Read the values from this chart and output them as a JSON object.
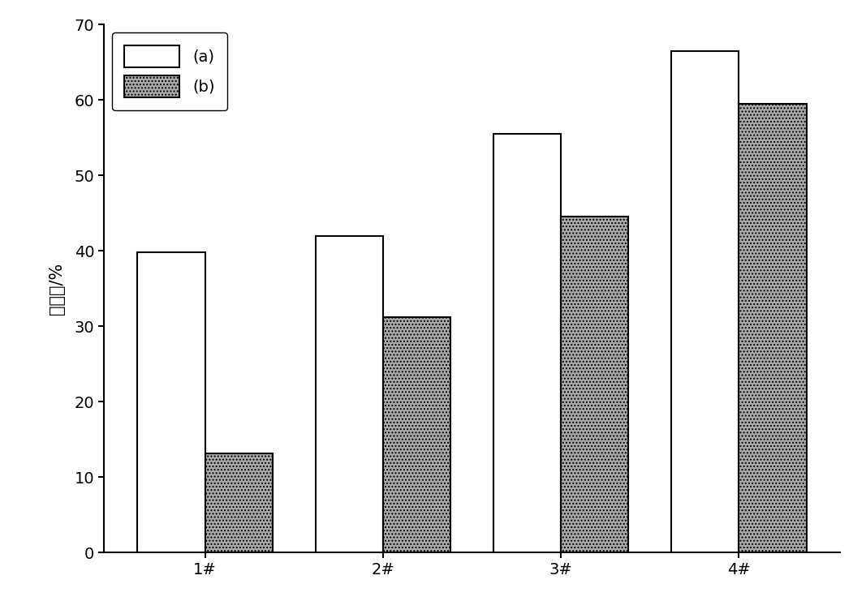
{
  "categories": [
    "1#",
    "2#",
    "3#",
    "4#"
  ],
  "series_a": [
    39.8,
    42.0,
    55.5,
    66.5
  ],
  "series_b": [
    13.2,
    31.2,
    44.5,
    59.5
  ],
  "series_a_color": "#ffffff",
  "series_a_edgecolor": "#000000",
  "series_b_color": "#aaaaaa",
  "series_b_edgecolor": "#000000",
  "series_b_hatch": "....",
  "ylabel": "降解率/%",
  "ylim": [
    0,
    70
  ],
  "yticks": [
    0,
    10,
    20,
    30,
    40,
    50,
    60,
    70
  ],
  "legend_a": "(a)",
  "legend_b": "(b)",
  "bar_width": 0.38,
  "background_color": "#ffffff",
  "label_fontsize": 15,
  "tick_fontsize": 14,
  "legend_fontsize": 14
}
